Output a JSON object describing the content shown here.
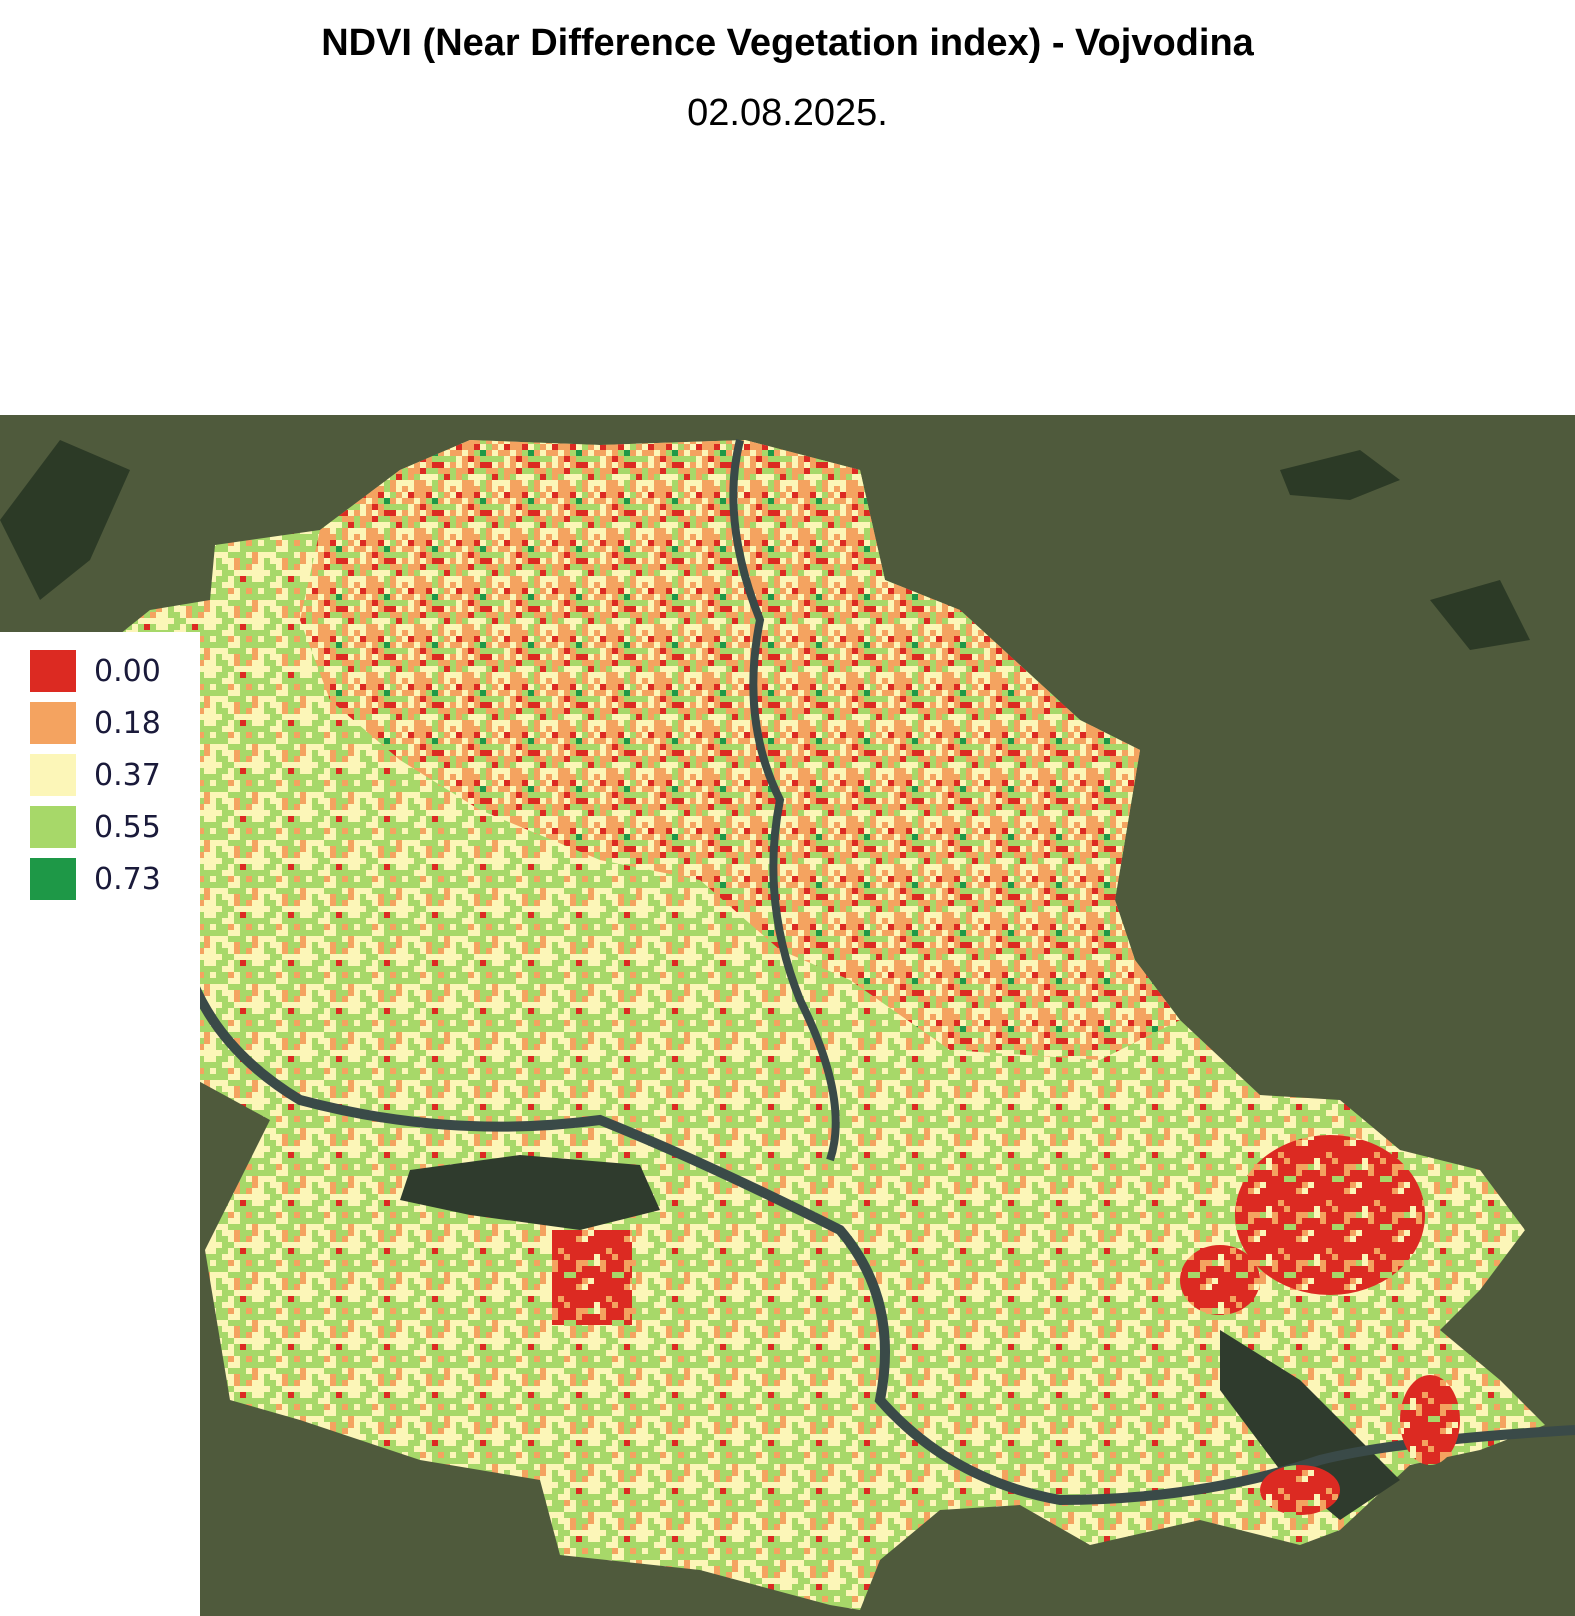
{
  "title": "NDVI (Near Difference Vegetation index) - Vojvodina",
  "date": "02.08.2025.",
  "legend": {
    "items": [
      {
        "label": "0.00",
        "color": "#dc2a22"
      },
      {
        "label": "0.18",
        "color": "#f4a360"
      },
      {
        "label": "0.37",
        "color": "#fcf6b8"
      },
      {
        "label": "0.55",
        "color": "#a7d869"
      },
      {
        "label": "0.73",
        "color": "#1e9847"
      }
    ]
  }
}
